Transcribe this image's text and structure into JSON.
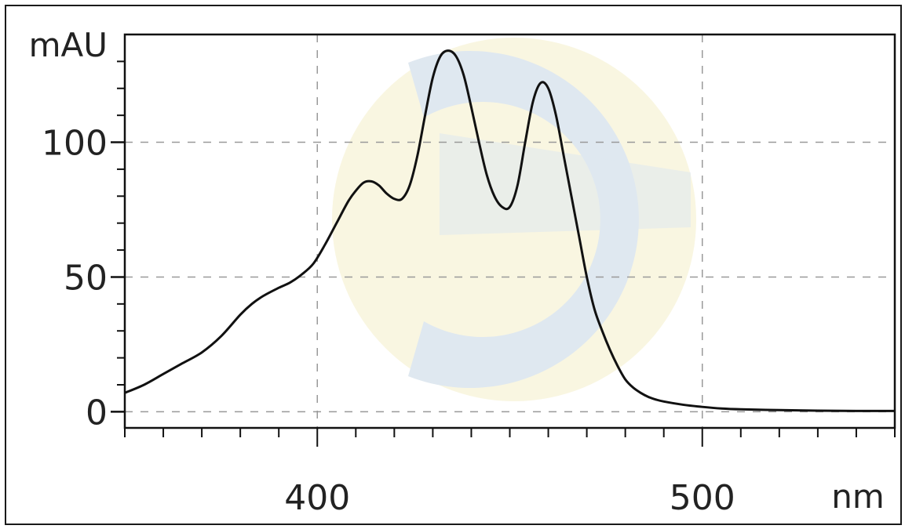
{
  "chart_data": {
    "type": "line",
    "title": "",
    "xlabel": "nm",
    "ylabel": "mAU",
    "xlim": [
      350,
      550
    ],
    "ylim": [
      -6,
      140
    ],
    "x_ticks": [
      400,
      500
    ],
    "x_tick_labels": [
      "400",
      "500"
    ],
    "y_ticks": [
      0,
      50,
      100
    ],
    "y_tick_labels": [
      "0",
      "50",
      "100"
    ],
    "grid": true,
    "watermark": "logo",
    "colors": {
      "line": "#111111",
      "grid": "#999999",
      "axis": "#111111",
      "watermark_blue": "#dfe8f0",
      "watermark_yellow": "#f9f6e1"
    },
    "series": [
      {
        "x": [
          350,
          355,
          360,
          365,
          370,
          375,
          380,
          383,
          386,
          390,
          393,
          396,
          399,
          402,
          405,
          408,
          410,
          412,
          414,
          416,
          418,
          420,
          422,
          424,
          426,
          428,
          430,
          432,
          434,
          436,
          438,
          440,
          442,
          444,
          446,
          448,
          450,
          452,
          454,
          456,
          458,
          460,
          462,
          464,
          466,
          468,
          470,
          472,
          474,
          476,
          478,
          480,
          482,
          484,
          486,
          488,
          490,
          495,
          500,
          505,
          510,
          520,
          530,
          540,
          550
        ],
        "y": [
          7,
          10,
          14,
          18,
          22,
          28,
          36,
          40,
          43,
          46,
          48,
          51,
          55,
          62,
          70,
          78,
          82,
          85,
          85.5,
          84,
          81,
          79,
          79,
          84,
          95,
          110,
          124,
          132,
          134,
          132,
          125,
          113,
          100,
          88,
          80,
          76,
          76,
          84,
          100,
          115,
          122,
          120,
          110,
          95,
          80,
          65,
          50,
          38,
          30,
          23,
          17,
          12,
          9,
          7,
          5.5,
          4.5,
          3.8,
          2.6,
          1.8,
          1.2,
          0.9,
          0.6,
          0.4,
          0.3,
          0.3
        ]
      }
    ]
  }
}
